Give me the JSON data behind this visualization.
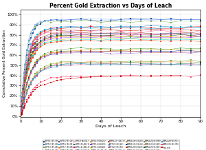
{
  "title": "Percent Gold Extraction vs Days of Leach",
  "xlabel": "Days of Leach",
  "ylabel": "Cumulative Percent Gold Extraction",
  "xlim": [
    0,
    90
  ],
  "ylim": [
    -0.01,
    1.05
  ],
  "ytick_vals": [
    0.0,
    0.1,
    0.2,
    0.3,
    0.4,
    0.5,
    0.6,
    0.7,
    0.8,
    0.9,
    1.0
  ],
  "xtick_vals": [
    0,
    10,
    20,
    30,
    40,
    50,
    60,
    70,
    80,
    90
  ],
  "series": [
    {
      "label": "BPT-1 (97.79)",
      "color": "#003399",
      "marker": "s",
      "final": 0.95,
      "tau": 3.0
    },
    {
      "label": "BPT-2 (97.20)",
      "color": "#0070C0",
      "marker": "s",
      "final": 0.88,
      "tau": 3.5
    },
    {
      "label": "BPT-3 (97.28)",
      "color": "#70AD47",
      "marker": "s",
      "final": 0.935,
      "tau": 2.5
    },
    {
      "label": "BPT-4 (97.29)",
      "color": "#FF0000",
      "marker": "s",
      "final": 0.87,
      "tau": 3.5
    },
    {
      "label": "BPT-5 (97.29)",
      "color": "#7030A0",
      "marker": "s",
      "final": 0.845,
      "tau": 3.5
    },
    {
      "label": "BPT-6 (93.01)",
      "color": "#00B0F0",
      "marker": "s",
      "final": 0.87,
      "tau": 3.0
    },
    {
      "label": "BPT-7 (93.05)",
      "color": "#FF6600",
      "marker": "^",
      "final": 0.85,
      "tau": 3.0
    },
    {
      "label": "BPT-8 (93.07)",
      "color": "#7F3F00",
      "marker": "s",
      "final": 0.82,
      "tau": 3.5
    },
    {
      "label": "BPT-9 (48.11)",
      "color": "#FF99CC",
      "marker": "s",
      "final": 0.815,
      "tau": 4.0
    },
    {
      "label": "BPT-10 (48.11)",
      "color": "#336699",
      "marker": "s",
      "final": 0.81,
      "tau": 4.0
    },
    {
      "label": "BPT-11 (48.13)",
      "color": "#CC0066",
      "marker": "s",
      "final": 0.8,
      "tau": 4.0
    },
    {
      "label": "BPT-12 (93.19)",
      "color": "#006600",
      "marker": "s",
      "final": 0.79,
      "tau": 3.5
    },
    {
      "label": "BPT-13 (48.21)",
      "color": "#FF9900",
      "marker": "s",
      "final": 0.785,
      "tau": 4.0
    },
    {
      "label": "BPT-14 (48.28)",
      "color": "#9933FF",
      "marker": "s",
      "final": 0.775,
      "tau": 4.0
    },
    {
      "label": "BPT-15 (48.28)",
      "color": "#CCCC00",
      "marker": "^",
      "final": 0.765,
      "tau": 4.0
    },
    {
      "label": "BPR2-16 (43.14)",
      "color": "#00CCCC",
      "marker": "s",
      "final": 0.755,
      "tau": 4.0
    },
    {
      "label": "BPR2-17 (43.17)",
      "color": "#FF3300",
      "marker": "s",
      "final": 0.745,
      "tau": 4.0
    },
    {
      "label": "BPT-22 (93.49)",
      "color": "#6699FF",
      "marker": "x",
      "final": 0.95,
      "tau": 2.5
    },
    {
      "label": "BPT-23 (93.52)",
      "color": "#FF6699",
      "marker": "s",
      "final": 0.83,
      "tau": 3.0
    },
    {
      "label": "BPR2-24 (43.13)",
      "color": "#339933",
      "marker": "s",
      "final": 0.66,
      "tau": 4.5
    },
    {
      "label": "BPR2-18 (43.43)",
      "color": "#CC9900",
      "marker": "s",
      "final": 0.65,
      "tau": 4.5
    },
    {
      "label": "BPR2-19 (43.46)",
      "color": "#003399",
      "marker": "s",
      "final": 0.64,
      "tau": 4.5
    },
    {
      "label": "BPR2-20 (43.49)",
      "color": "#CC3300",
      "marker": "s",
      "final": 0.635,
      "tau": 4.5
    },
    {
      "label": "BPR2-21 (43.49)",
      "color": "#9966CC",
      "marker": "s",
      "final": 0.625,
      "tau": 4.5
    },
    {
      "label": "BPR2-24 (43.98)",
      "color": "#669900",
      "marker": "s",
      "final": 0.54,
      "tau": 5.0
    },
    {
      "label": "BPR2-25 (43.81)",
      "color": "#FF9966",
      "marker": "s",
      "final": 0.53,
      "tau": 5.0
    },
    {
      "label": "BPR2-26 (43.87)",
      "color": "#006633",
      "marker": "s",
      "final": 0.52,
      "tau": 5.0
    },
    {
      "label": "BPR2-27 (43.84)",
      "color": "#CC6699",
      "marker": "s",
      "final": 0.51,
      "tau": 5.0
    },
    {
      "label": "BPR2-28 (93.57)",
      "color": "#3399CC",
      "marker": "s",
      "final": 0.51,
      "tau": 5.0
    },
    {
      "label": "BPR2-29 (93.78)",
      "color": "#FF3366",
      "marker": "s",
      "final": 0.395,
      "tau": 5.5
    }
  ],
  "low_series": [
    {
      "label": "low_red",
      "color": "#CC0000",
      "marker": "s",
      "x": [
        0.3,
        0.5,
        0.7,
        1,
        1.5,
        2,
        3,
        4,
        5,
        6,
        7,
        8,
        10,
        12,
        15,
        18,
        20,
        25,
        30,
        35,
        40,
        45,
        50,
        55,
        60,
        65,
        70,
        75,
        80
      ],
      "y": [
        0.01,
        0.02,
        0.03,
        0.05,
        0.08,
        0.1,
        0.14,
        0.18,
        0.21,
        0.24,
        0.26,
        0.28,
        0.3,
        0.31,
        0.33,
        0.35,
        0.36,
        0.37,
        0.38,
        0.385,
        0.39,
        0.392,
        0.394,
        0.395,
        0.396,
        0.396,
        0.397,
        0.397,
        0.397
      ]
    }
  ],
  "bg_color": "#FFFFFF",
  "grid_color": "#CCCCCC",
  "title_fontsize": 5.5,
  "axis_fontsize": 4.5,
  "tick_fontsize": 4.0,
  "legend_fontsize": 2.0,
  "legend_ncol": 8
}
